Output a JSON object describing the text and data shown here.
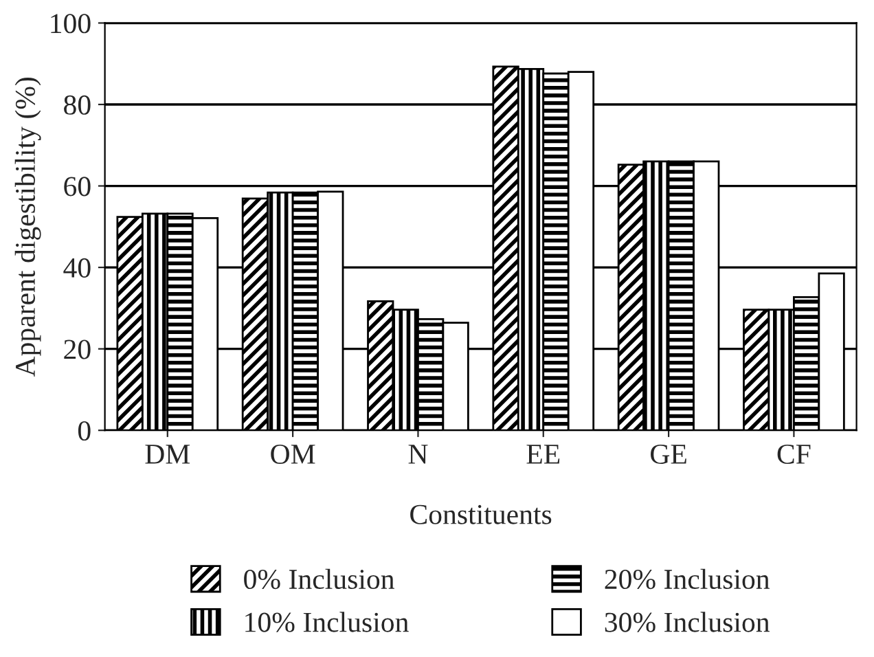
{
  "chart_data": {
    "type": "bar",
    "xlabel": "Constituents",
    "ylabel": "Apparent digestibility (%)",
    "categories": [
      "DM",
      "OM",
      "N",
      "EE",
      "GE",
      "CF"
    ],
    "series": [
      {
        "name": "0% Inclusion",
        "color": "#000000",
        "values": [
          52.4,
          56.9,
          31.7,
          89.3,
          65.2,
          29.6
        ]
      },
      {
        "name": "10% Inclusion",
        "color": "#000000",
        "values": [
          53.2,
          58.4,
          29.6,
          88.7,
          66.0,
          29.6
        ]
      },
      {
        "name": "20% Inclusion",
        "color": "#000000",
        "values": [
          53.2,
          58.4,
          27.3,
          87.6,
          66.0,
          32.7
        ]
      },
      {
        "name": "30% Inclusion",
        "color": "#ffffff",
        "values": [
          52.1,
          58.6,
          26.4,
          88.0,
          66.0,
          38.5
        ]
      }
    ],
    "ylim": [
      0,
      100
    ],
    "yticks": [
      0,
      20,
      40,
      60,
      80,
      100
    ],
    "grid": "y",
    "legend": "bottom"
  }
}
